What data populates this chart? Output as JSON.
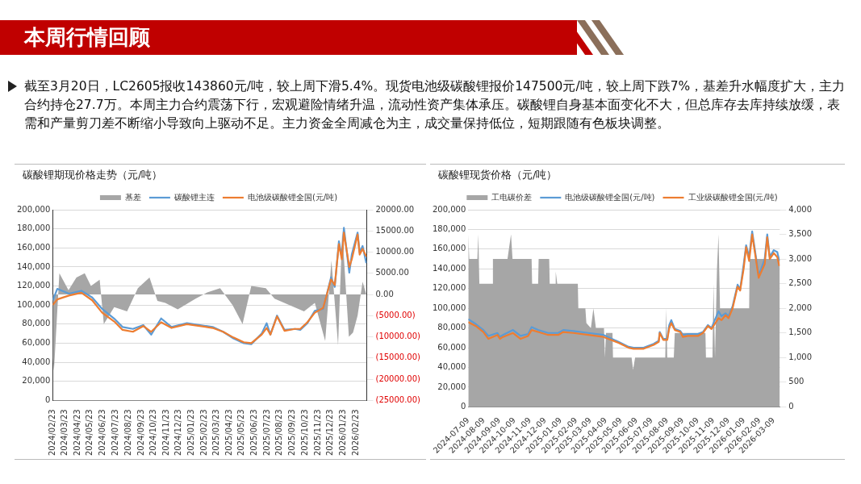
{
  "chart_data": [
    {
      "type": "other",
      "title": "本周行情回顾",
      "annotations": [
        "截至3月20日，LC2605报收143860元/吨，较上周下滑5.4%。现货电池级碳酸锂报价147500元/吨，较上周下跌7%，基差升水幅度扩大，主力合约持仓27.7万。本周主力合约震荡下行，宏观避险情绪升温，流动性资产集体承压。碳酸锂自身基本面变化不大，但总库存去库持续放缓，表需和产量剪刀差不断缩小导致向上驱动不足。主力资金全周减仓为主，成交量保持低位，短期跟随有色板块调整。"
      ]
    },
    {
      "type": "line",
      "title": "碳酸锂期现价格走势（元/吨）",
      "legend": "top",
      "grid": "y",
      "xlim": [
        "2024-02-23",
        "2026-03-20"
      ],
      "xticks": [
        {
          "value": "2024-02-23",
          "label": "2024/02/23"
        },
        {
          "value": "2024-03-23",
          "label": "2024/03/23"
        },
        {
          "value": "2024-04-23",
          "label": "2024/04/23"
        },
        {
          "value": "2024-05-23",
          "label": "2024/05/23"
        },
        {
          "value": "2024-06-23",
          "label": "2024/06/23"
        },
        {
          "value": "2024-07-23",
          "label": "2024/07/23"
        },
        {
          "value": "2024-08-23",
          "label": "2024/08/23"
        },
        {
          "value": "2024-09-23",
          "label": "2024/09/23"
        },
        {
          "value": "2024-10-23",
          "label": "2024/10/23"
        },
        {
          "value": "2024-11-23",
          "label": "2024/11/23"
        },
        {
          "value": "2024-12-23",
          "label": "2024/12/23"
        },
        {
          "value": "2025-01-23",
          "label": "2025/01/23"
        },
        {
          "value": "2025-02-23",
          "label": "2025/02/23"
        },
        {
          "value": "2025-03-23",
          "label": "2025/03/23"
        },
        {
          "value": "2025-04-23",
          "label": "2025/04/23"
        },
        {
          "value": "2025-05-23",
          "label": "2025/05/23"
        },
        {
          "value": "2025-06-23",
          "label": "2025/06/23"
        },
        {
          "value": "2025-07-23",
          "label": "2025/07/23"
        },
        {
          "value": "2025-08-23",
          "label": "2025/08/23"
        },
        {
          "value": "2025-09-23",
          "label": "2025/09/23"
        },
        {
          "value": "2025-10-23",
          "label": "2025/10/23"
        },
        {
          "value": "2025-11-23",
          "label": "2025/11/23"
        },
        {
          "value": "2025-12-23",
          "label": "2025/12/23"
        },
        {
          "value": "2026-01-23",
          "label": "2026/01/23"
        },
        {
          "value": "2026-02-23",
          "label": "2026/02/23"
        }
      ],
      "ylim": [
        0,
        200000
      ],
      "yticks": [
        0,
        {
          "value": 20000,
          "label": "20,000"
        },
        {
          "value": 40000,
          "label": "40,000"
        },
        {
          "value": 60000,
          "label": "60,000"
        },
        {
          "value": 80000,
          "label": "80,000"
        },
        {
          "value": 100000,
          "label": "100,000"
        },
        {
          "value": 120000,
          "label": "120,000"
        },
        {
          "value": 140000,
          "label": "140,000"
        },
        {
          "value": 160000,
          "label": "160,000"
        },
        {
          "value": 180000,
          "label": "180,000"
        },
        {
          "value": 200000,
          "label": "200,000"
        }
      ],
      "y2lim": [
        -25000,
        20000
      ],
      "y2ticks": [
        {
          "value": -25000,
          "label": "(25000.00)"
        },
        {
          "value": -20000,
          "label": "(20000.00)"
        },
        {
          "value": -15000,
          "label": "(15000.00)"
        },
        {
          "value": -10000,
          "label": "(10000.00)"
        },
        {
          "value": -5000,
          "label": "(5000.00)"
        },
        {
          "value": 0,
          "label": "0.00"
        },
        {
          "value": 5000,
          "label": "5000.00"
        },
        {
          "value": 10000,
          "label": "10000.00"
        },
        {
          "value": 15000,
          "label": "15000.00"
        },
        {
          "value": 20000,
          "label": "20000.00"
        }
      ],
      "series": [
        {
          "name": "基差",
          "type": "area",
          "axis": "y2",
          "color": "#a6a6a6",
          "x": [
            "2024-02-23",
            "2024-02-26",
            "2024-03-10",
            "2024-04-01",
            "2024-04-20",
            "2024-05-10",
            "2024-05-25",
            "2024-06-15",
            "2024-06-25",
            "2024-07-20",
            "2024-08-20",
            "2024-09-15",
            "2024-10-13",
            "2024-11-01",
            "2024-11-20",
            "2024-12-20",
            "2025-02-01",
            "2025-03-01",
            "2025-04-01",
            "2025-05-01",
            "2025-05-25",
            "2025-06-15",
            "2025-07-20",
            "2025-08-10",
            "2025-09-15",
            "2025-10-20",
            "2025-11-15",
            "2025-12-10",
            "2025-12-25",
            "2026-01-10",
            "2026-01-20",
            "2026-02-05",
            "2026-02-15",
            "2026-02-26",
            "2026-03-10",
            "2026-03-19"
          ],
          "values": [
            -15000,
            -18000,
            5000,
            1000,
            4000,
            5000,
            2000,
            3500,
            -7000,
            -3000,
            -4000,
            1500,
            4000,
            -1500,
            -2000,
            -3500,
            -1000,
            500,
            1500,
            -2500,
            -7000,
            2000,
            1500,
            -1000,
            -2500,
            -4000,
            -2000,
            -11000,
            8000,
            -12000,
            15000,
            -10000,
            -9000,
            -5000,
            3000,
            0
          ]
        },
        {
          "name": "碳酸锂主连",
          "type": "line",
          "color": "#5b9bd5",
          "x": [
            "2024-02-23",
            "2024-03-05",
            "2024-04-02",
            "2024-05-02",
            "2024-05-28",
            "2024-06-21",
            "2024-07-22",
            "2024-08-09",
            "2024-09-03",
            "2024-09-28",
            "2024-10-17",
            "2024-11-10",
            "2024-12-05",
            "2025-01-11",
            "2025-03-14",
            "2025-04-08",
            "2025-05-03",
            "2025-05-28",
            "2025-06-15",
            "2025-07-10",
            "2025-07-22",
            "2025-07-31",
            "2025-08-16",
            "2025-09-03",
            "2025-09-28",
            "2025-10-11",
            "2025-10-28",
            "2025-11-15",
            "2025-12-05",
            "2025-12-24",
            "2026-01-02",
            "2026-01-12",
            "2026-01-19",
            "2026-01-24",
            "2026-02-06",
            "2026-02-12",
            "2026-02-26",
            "2026-03-03",
            "2026-03-10",
            "2026-03-19"
          ],
          "values": [
            105000,
            117000,
            112000,
            115000,
            108000,
            96000,
            85000,
            77000,
            75000,
            79000,
            69000,
            86000,
            77000,
            81000,
            77000,
            72000,
            65000,
            60000,
            59000,
            70000,
            81000,
            69000,
            89000,
            74000,
            75000,
            74000,
            81000,
            94000,
            96000,
            129000,
            119000,
            167000,
            150000,
            181000,
            134000,
            153000,
            176000,
            155000,
            162000,
            144000
          ]
        },
        {
          "name": "电池级碳酸锂全国(元/吨)",
          "type": "line",
          "color": "#ed7d31",
          "x": [
            "2024-02-23",
            "2024-03-05",
            "2024-04-02",
            "2024-05-02",
            "2024-05-28",
            "2024-06-21",
            "2024-07-22",
            "2024-08-09",
            "2024-09-03",
            "2024-09-28",
            "2024-10-17",
            "2024-11-10",
            "2024-12-05",
            "2025-01-11",
            "2025-03-14",
            "2025-04-08",
            "2025-05-03",
            "2025-05-28",
            "2025-06-15",
            "2025-07-10",
            "2025-07-22",
            "2025-07-31",
            "2025-08-16",
            "2025-09-03",
            "2025-09-28",
            "2025-10-11",
            "2025-10-28",
            "2025-11-15",
            "2025-12-05",
            "2025-12-24",
            "2026-01-02",
            "2026-01-12",
            "2026-01-19",
            "2026-01-24",
            "2026-02-06",
            "2026-02-12",
            "2026-02-26",
            "2026-03-03",
            "2026-03-10",
            "2026-03-19"
          ],
          "values": [
            100000,
            106000,
            110000,
            113000,
            105000,
            92000,
            82000,
            74000,
            72000,
            78000,
            72000,
            82000,
            76000,
            80000,
            76000,
            72000,
            66000,
            61000,
            60000,
            69000,
            76000,
            69000,
            88000,
            73000,
            75000,
            75000,
            82000,
            92000,
            97000,
            127000,
            121000,
            164000,
            148000,
            176000,
            140000,
            148000,
            174000,
            153000,
            159000,
            151000
          ]
        }
      ]
    },
    {
      "type": "line",
      "title": "碳酸锂现货价格（元/吨）",
      "legend": "top",
      "grid": "y",
      "xlim": [
        "2024-07-09",
        "2026-03-21"
      ],
      "xticks": [
        "2024-07-09",
        "2024-08-09",
        "2024-09-09",
        "2024-10-09",
        "2024-11-09",
        "2024-12-09",
        "2025-01-09",
        "2025-02-09",
        "2025-03-09",
        "2025-04-09",
        "2025-05-09",
        "2025-06-09",
        "2025-07-09",
        "2025-08-09",
        "2025-09-09",
        "2025-10-09",
        "2025-11-09",
        "2025-12-09",
        "2026-01-09",
        "2026-02-09",
        "2026-03-09"
      ],
      "ylim": [
        0,
        200000
      ],
      "yticks": [
        0,
        {
          "value": 20000,
          "label": "20,000"
        },
        {
          "value": 40000,
          "label": "40,000"
        },
        {
          "value": 60000,
          "label": "60,000"
        },
        {
          "value": 80000,
          "label": "80,000"
        },
        {
          "value": 100000,
          "label": "100,000"
        },
        {
          "value": 120000,
          "label": "120,000"
        },
        {
          "value": 140000,
          "label": "140,000"
        },
        {
          "value": 160000,
          "label": "160,000"
        },
        {
          "value": 180000,
          "label": "180,000"
        },
        {
          "value": 200000,
          "label": "200,000"
        }
      ],
      "y2lim": [
        0,
        4000
      ],
      "y2ticks": [
        0,
        500,
        {
          "value": 1000,
          "label": "1,000"
        },
        {
          "value": 1500,
          "label": "1,500"
        },
        {
          "value": 2000,
          "label": "2,000"
        },
        {
          "value": 2500,
          "label": "2,500"
        },
        {
          "value": 3000,
          "label": "3,000"
        },
        {
          "value": 3500,
          "label": "3,500"
        },
        {
          "value": 4000,
          "label": "4,000"
        }
      ],
      "series": [
        {
          "name": "工电碳价差",
          "type": "area",
          "axis": "y2",
          "color": "#a6a6a6",
          "x": [
            "2024-07-09",
            "2024-07-11",
            "2024-07-27",
            "2024-07-29",
            "2024-07-31",
            "2024-08-26",
            "2024-08-27",
            "2024-09-25",
            "2024-10-02",
            "2024-10-05",
            "2024-11-12",
            "2024-11-13",
            "2024-11-25",
            "2024-11-26",
            "2024-12-17",
            "2024-12-18",
            "2024-12-29",
            "2024-12-30",
            "2025-01-02",
            "2025-02-12",
            "2025-02-13",
            "2025-02-27",
            "2025-03-01",
            "2025-03-10",
            "2025-03-15",
            "2025-03-20",
            "2025-04-05",
            "2025-04-07",
            "2025-04-09",
            "2025-04-22",
            "2025-04-23",
            "2025-05-30",
            "2025-06-02",
            "2025-06-06",
            "2025-08-05",
            "2025-08-07",
            "2025-08-09",
            "2025-08-22",
            "2025-08-24",
            "2025-10-24",
            "2025-10-25",
            "2025-11-07",
            "2025-11-09",
            "2025-11-12",
            "2025-11-16",
            "2025-11-19",
            "2025-11-22",
            "2026-01-19",
            "2026-01-20",
            "2026-03-21"
          ],
          "values": [
            3500,
            3000,
            3000,
            3500,
            2500,
            2500,
            3000,
            3000,
            3500,
            3000,
            3000,
            2500,
            2500,
            3000,
            3000,
            2500,
            2500,
            2750,
            2500,
            2500,
            2000,
            2000,
            1700,
            1600,
            2000,
            1600,
            1600,
            1000,
            1500,
            1500,
            1000,
            1000,
            750,
            1000,
            1000,
            2000,
            1000,
            1000,
            1500,
            1500,
            1000,
            1000,
            2500,
            1000,
            2800,
            3500,
            2000,
            2000,
            3000,
            3000
          ]
        },
        {
          "name": "电池级碳酸锂全国(元/吨)",
          "type": "line",
          "color": "#5b9bd5",
          "x": [
            "2024-07-09",
            "2024-07-24",
            "2024-08-08",
            "2024-08-18",
            "2024-09-05",
            "2024-09-10",
            "2024-09-16",
            "2024-10-06",
            "2024-10-21",
            "2024-11-05",
            "2024-11-12",
            "2024-11-25",
            "2024-12-15",
            "2025-01-04",
            "2025-01-14",
            "2025-02-03",
            "2025-03-05",
            "2025-04-04",
            "2025-05-04",
            "2025-05-24",
            "2025-06-03",
            "2025-06-23",
            "2025-07-13",
            "2025-07-23",
            "2025-07-25",
            "2025-08-01",
            "2025-08-09",
            "2025-08-13",
            "2025-08-17",
            "2025-08-24",
            "2025-09-04",
            "2025-09-09",
            "2025-09-19",
            "2025-10-09",
            "2025-10-19",
            "2025-10-29",
            "2025-11-05",
            "2025-11-19",
            "2025-11-25",
            "2025-12-03",
            "2025-12-09",
            "2025-12-17",
            "2025-12-27",
            "2026-01-01",
            "2026-01-08",
            "2026-01-13",
            "2026-01-19",
            "2026-01-25",
            "2026-02-07",
            "2026-02-19",
            "2026-02-24",
            "2026-03-01",
            "2026-03-09",
            "2026-03-16",
            "2026-03-20"
          ],
          "values": [
            89000,
            84000,
            78000,
            72000,
            75000,
            71000,
            73000,
            78000,
            72000,
            74000,
            81000,
            78000,
            75000,
            75000,
            78000,
            77000,
            75000,
            73000,
            66000,
            61000,
            60000,
            60000,
            64000,
            67000,
            76000,
            69000,
            69000,
            83000,
            88000,
            79000,
            77000,
            73000,
            74000,
            74000,
            76000,
            83000,
            80000,
            97000,
            92000,
            95000,
            92000,
            102000,
            124000,
            119000,
            144000,
            164000,
            152000,
            178000,
            133000,
            150000,
            175000,
            152000,
            159000,
            157000,
            148000
          ]
        },
        {
          "name": "工业级碳酸锂全国(元/吨)",
          "type": "line",
          "color": "#ed7d31",
          "x": [
            "2024-07-09",
            "2024-07-24",
            "2024-08-08",
            "2024-08-18",
            "2024-09-05",
            "2024-09-10",
            "2024-09-16",
            "2024-10-06",
            "2024-10-21",
            "2024-11-05",
            "2024-11-12",
            "2024-11-25",
            "2024-12-15",
            "2025-01-04",
            "2025-01-14",
            "2025-02-03",
            "2025-03-05",
            "2025-04-04",
            "2025-05-04",
            "2025-05-24",
            "2025-06-03",
            "2025-06-23",
            "2025-07-13",
            "2025-07-23",
            "2025-07-25",
            "2025-08-01",
            "2025-08-09",
            "2025-08-13",
            "2025-08-17",
            "2025-08-24",
            "2025-09-04",
            "2025-09-09",
            "2025-09-19",
            "2025-10-09",
            "2025-10-19",
            "2025-10-29",
            "2025-11-05",
            "2025-11-19",
            "2025-11-25",
            "2025-12-03",
            "2025-12-09",
            "2025-12-17",
            "2025-12-27",
            "2026-01-01",
            "2026-01-08",
            "2026-01-13",
            "2026-01-19",
            "2026-01-25",
            "2026-02-07",
            "2026-02-19",
            "2026-02-24",
            "2026-03-01",
            "2026-03-09",
            "2026-03-16",
            "2026-03-20"
          ],
          "values": [
            86000,
            82000,
            76000,
            69000,
            73000,
            69000,
            71000,
            75000,
            69000,
            72000,
            78000,
            76000,
            73000,
            73000,
            76000,
            75000,
            73000,
            71000,
            65000,
            60000,
            59000,
            59000,
            63000,
            66000,
            75000,
            68000,
            68000,
            80000,
            85000,
            78000,
            76000,
            71000,
            72000,
            72000,
            75000,
            82000,
            79000,
            90000,
            88000,
            93000,
            90000,
            100000,
            122000,
            118000,
            140000,
            162000,
            148000,
            175000,
            131000,
            145000,
            172000,
            150000,
            156000,
            152000,
            143000
          ]
        }
      ]
    }
  ]
}
